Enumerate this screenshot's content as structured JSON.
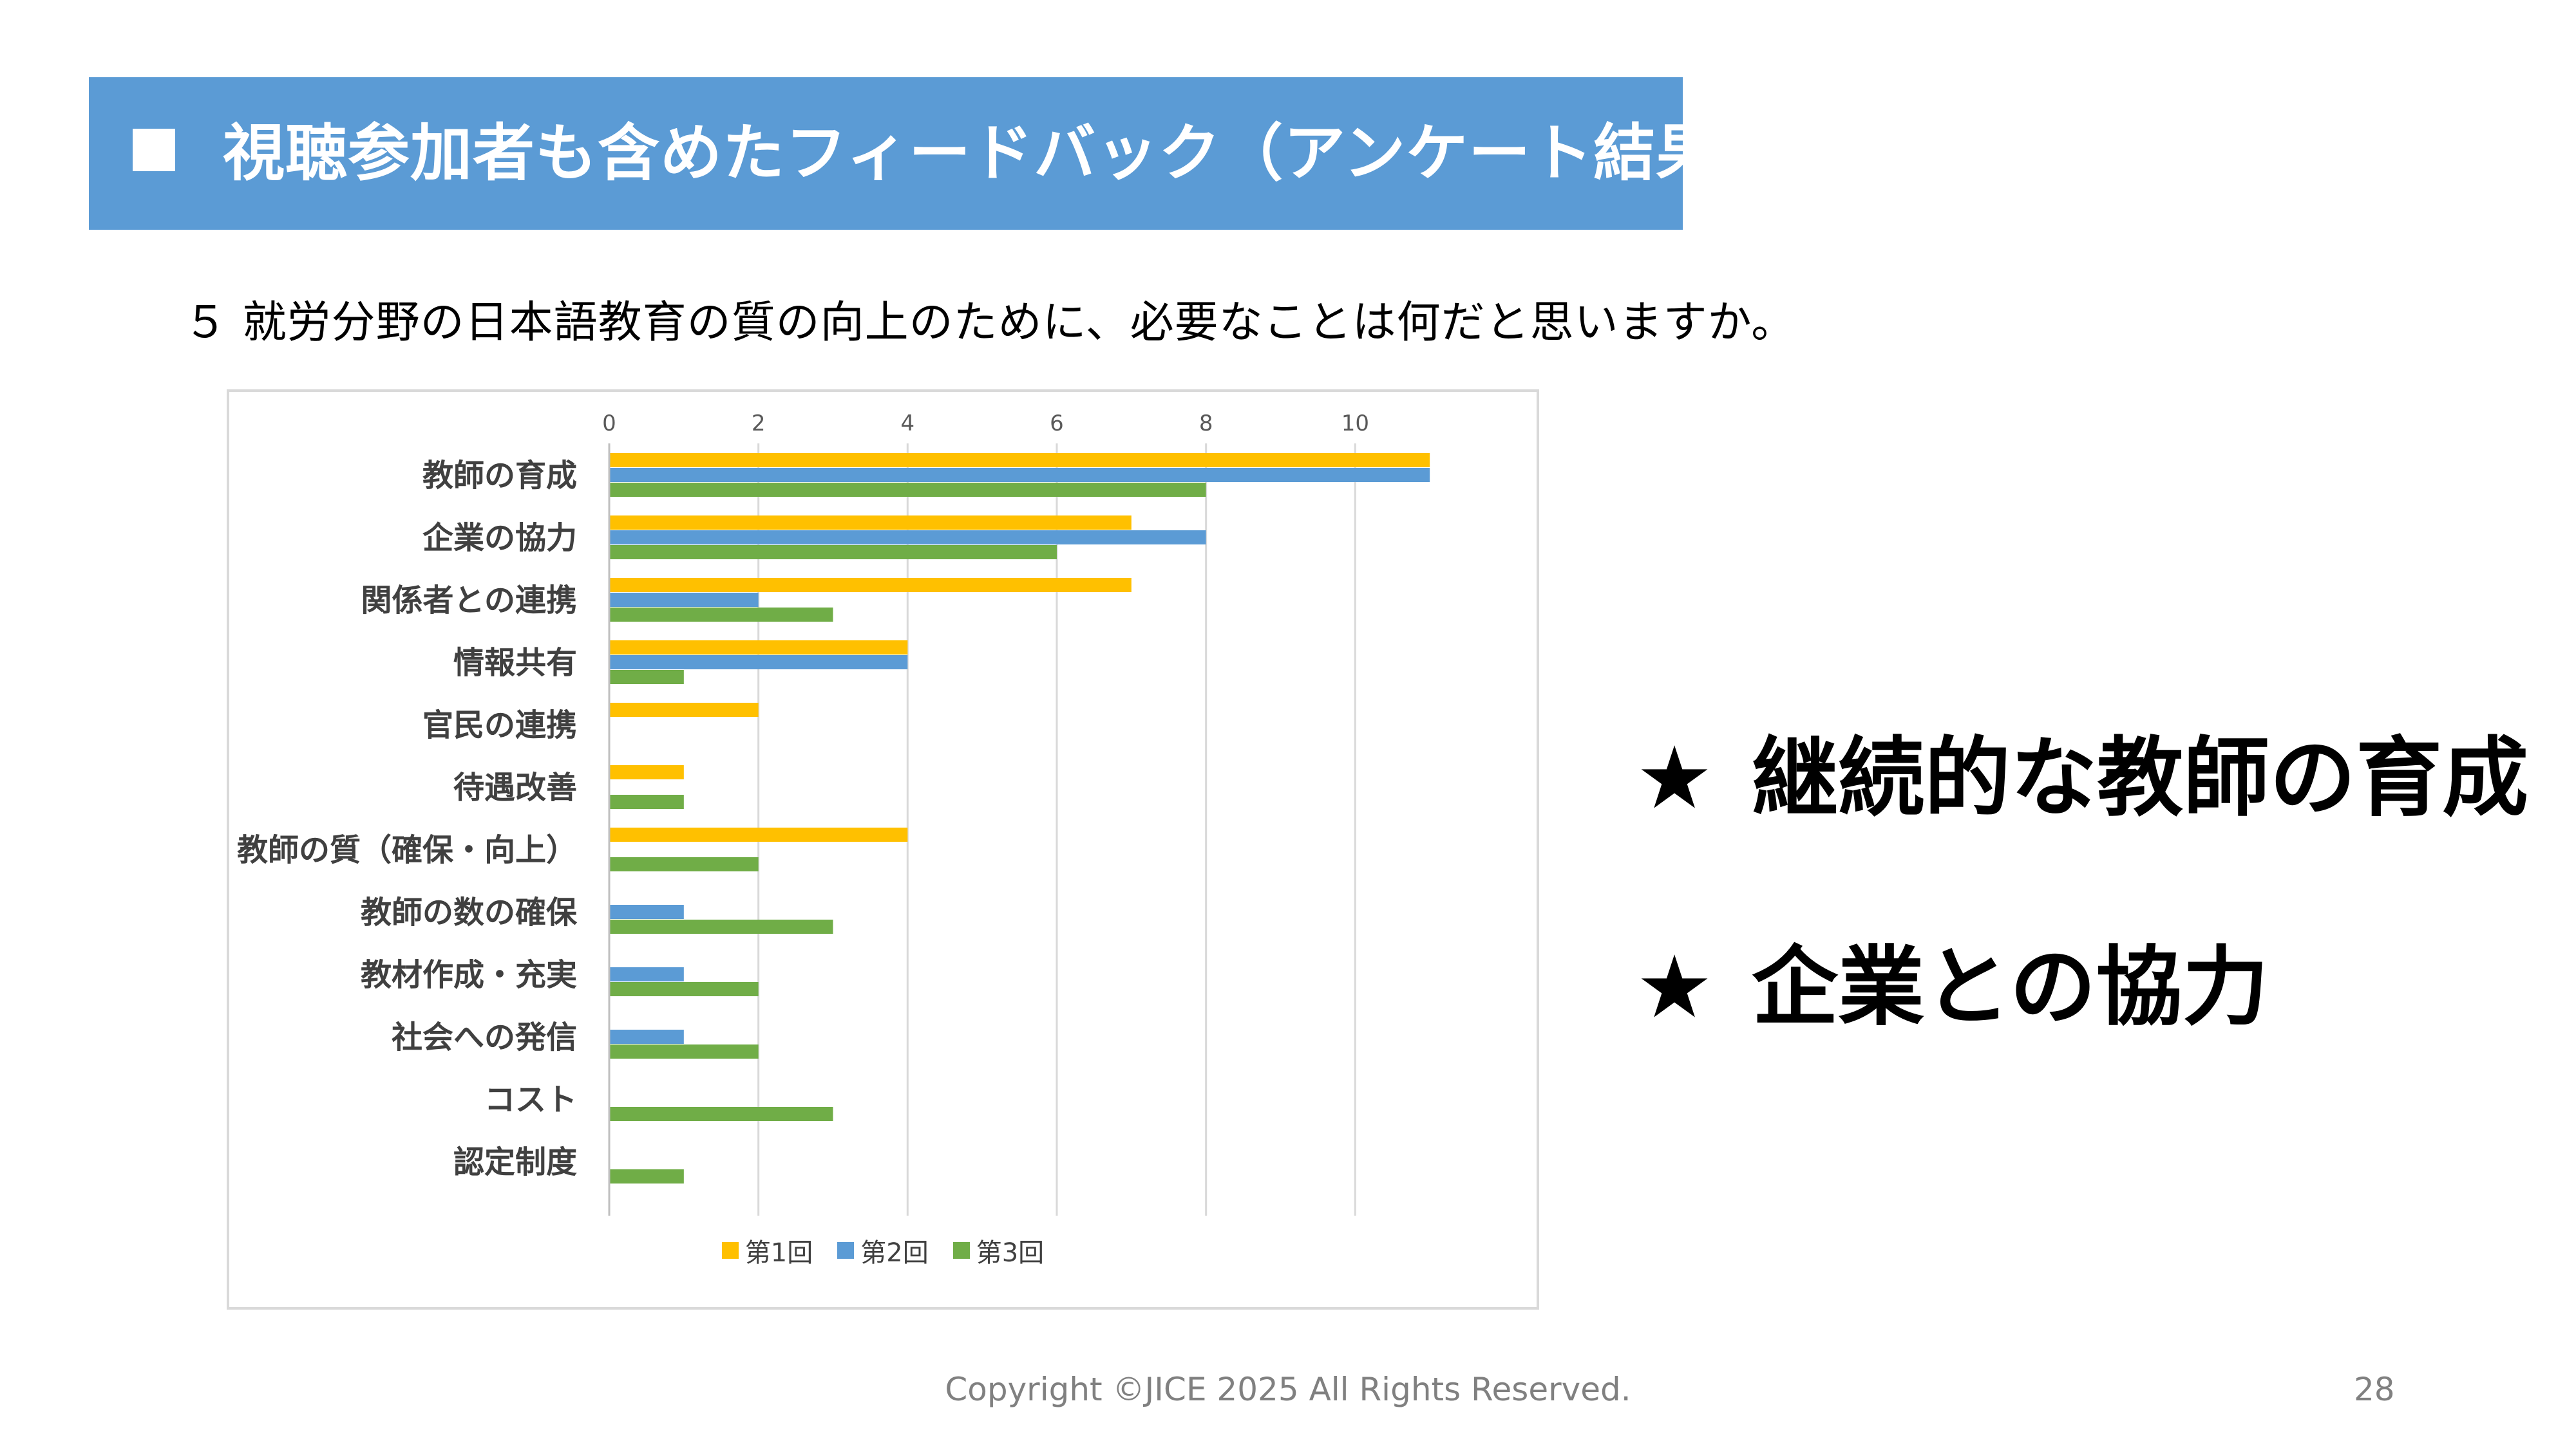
{
  "header": {
    "title": "視聴参加者も含めたフィードバック（アンケート結果）",
    "bullet_icon": "square-icon"
  },
  "question": {
    "text": "５ 就労分野の日本語教育の質の向上のために、必要なことは何だと思いますか。"
  },
  "chart_data": {
    "type": "bar",
    "orientation": "horizontal",
    "categories": [
      "教師の育成",
      "企業の協力",
      "関係者との連携",
      "情報共有",
      "官民の連携",
      "待遇改善",
      "教師の質（確保・向上）",
      "教師の数の確保",
      "教材作成・充実",
      "社会への発信",
      "コスト",
      "認定制度"
    ],
    "series": [
      {
        "name": "第1回",
        "color": "#ffc000",
        "values": [
          11,
          7,
          7,
          4,
          2,
          1,
          4,
          0,
          0,
          0,
          0,
          0
        ]
      },
      {
        "name": "第2回",
        "color": "#5b9bd5",
        "values": [
          11,
          8,
          2,
          4,
          0,
          0,
          0,
          1,
          1,
          1,
          0,
          0
        ]
      },
      {
        "name": "第3回",
        "color": "#70ad47",
        "values": [
          8,
          6,
          3,
          1,
          0,
          1,
          2,
          3,
          2,
          2,
          3,
          1
        ]
      }
    ],
    "xlim": [
      0,
      12
    ],
    "xticks": [
      0,
      2,
      4,
      6,
      8,
      10
    ],
    "axis_position": "top",
    "grid": true,
    "legend": "bottom"
  },
  "highlights": [
    {
      "star": "★",
      "text": "継続的な教師の育成"
    },
    {
      "star": "★",
      "text": "企業との協力"
    }
  ],
  "footer": {
    "copyright": "Copyright ©JICE 2025 All Rights Reserved.",
    "page_number": "28"
  }
}
